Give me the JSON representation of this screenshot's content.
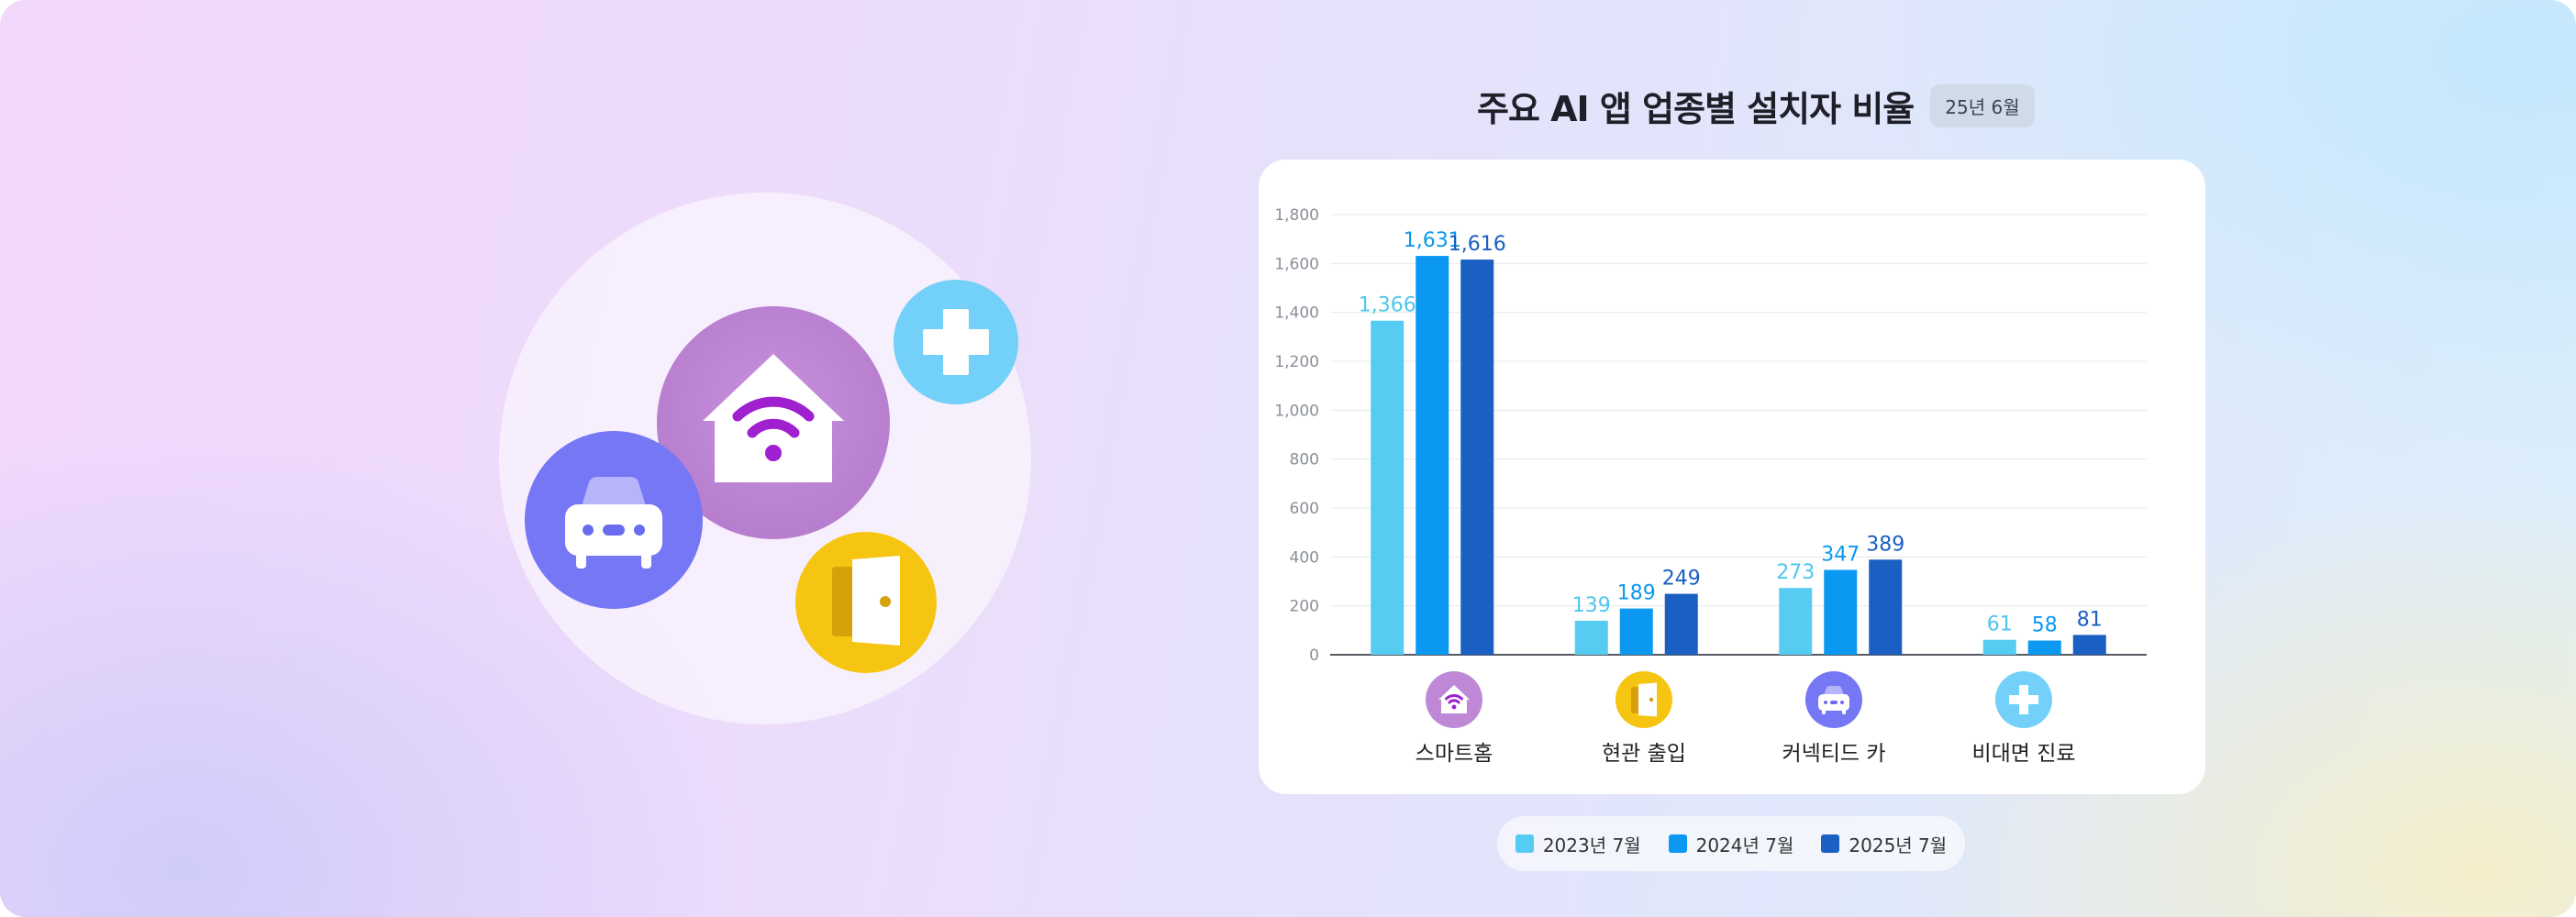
{
  "title": "주요 AI 앱 업종별 설치자 비율",
  "date_badge": "25년 6월",
  "colors": {
    "series_2023": "#56ccf2",
    "series_2024": "#0a98f0",
    "series_2025": "#1a5fc2",
    "smarthome_circle": "#bf88d6",
    "door_circle": "#f5c512",
    "car_circle": "#7577f5",
    "medical_circle": "#73d0f8"
  },
  "categories": [
    {
      "label": "스마트홈",
      "icon": "smart-home-wifi-icon"
    },
    {
      "label": "현관 출입",
      "icon": "door-icon"
    },
    {
      "label": "커넥티드 카",
      "icon": "car-icon"
    },
    {
      "label": "비대면 진료",
      "icon": "medical-cross-icon"
    }
  ],
  "legend": [
    "2023년 7월",
    "2024년 7월",
    "2025년 7월"
  ],
  "chart_data": {
    "type": "bar",
    "title": "주요 AI 앱 업종별 설치자 비율",
    "categories": [
      "스마트홈",
      "현관 출입",
      "커넥티드 카",
      "비대면 진료"
    ],
    "series": [
      {
        "name": "2023년 7월",
        "values": [
          1366,
          139,
          273,
          61
        ]
      },
      {
        "name": "2024년 7월",
        "values": [
          1631,
          189,
          347,
          58
        ]
      },
      {
        "name": "2025년 7월",
        "values": [
          1616,
          249,
          389,
          81
        ]
      }
    ],
    "value_labels": [
      [
        "1,366",
        "139",
        "273",
        "61"
      ],
      [
        "1,631",
        "189",
        "347",
        "58"
      ],
      [
        "1,616",
        "249",
        "389",
        "81"
      ]
    ],
    "ylim": [
      0,
      1800
    ],
    "yticks": [
      0,
      200,
      400,
      600,
      800,
      1000,
      1200,
      1400,
      1600,
      1800
    ],
    "ytick_labels": [
      "0",
      "200",
      "400",
      "600",
      "800",
      "1,000",
      "1,200",
      "1,400",
      "1,600",
      "1,800"
    ],
    "grid": true,
    "legend_position": "bottom"
  }
}
